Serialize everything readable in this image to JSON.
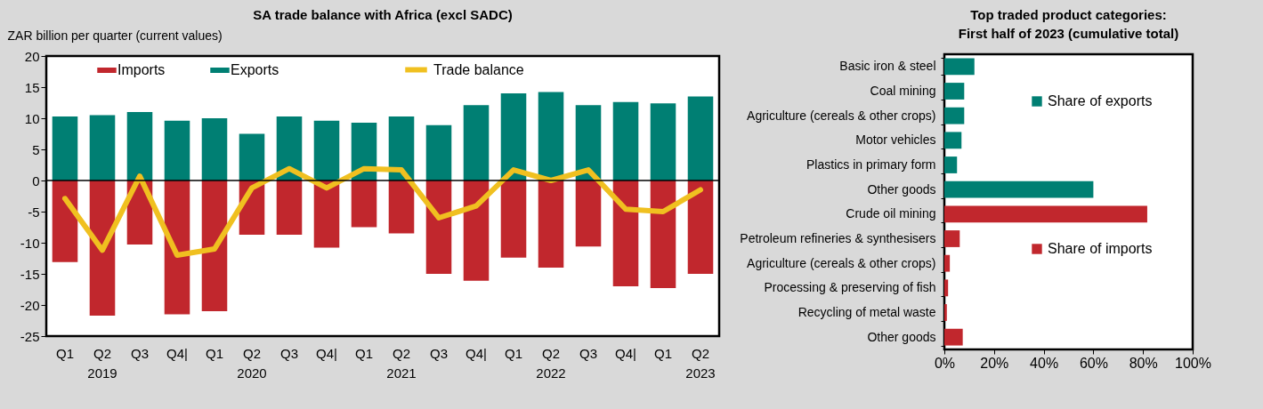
{
  "chart_data": [
    {
      "type": "bar",
      "title": "SA trade balance with Africa (excl SADC)",
      "ylabel": "ZAR billion per quarter  (current values)",
      "categories": [
        "Q1",
        "Q2\n2019",
        "Q3",
        "Q4|",
        "Q1",
        "Q2\n2020",
        "Q3",
        "Q4|",
        "Q1",
        "Q2\n2021",
        "Q3",
        "Q4|",
        "Q1",
        "Q2\n2022",
        "Q3",
        "Q4|",
        "Q1",
        "Q2\n2023"
      ],
      "series": [
        {
          "name": "Imports",
          "color": "#c1272d",
          "values": [
            -13.1,
            -21.7,
            -10.3,
            -21.5,
            -21.0,
            -8.7,
            -8.7,
            -10.8,
            -7.5,
            -8.5,
            -15.0,
            -16.1,
            -12.4,
            -14.0,
            -10.6,
            -17.0,
            -17.3,
            -15.0
          ]
        },
        {
          "name": "Exports",
          "color": "#007f73",
          "values": [
            10.3,
            10.5,
            11.0,
            9.6,
            10.0,
            7.5,
            10.3,
            9.6,
            9.3,
            10.3,
            8.9,
            12.1,
            14.0,
            14.2,
            12.1,
            12.6,
            12.4,
            13.5
          ]
        },
        {
          "name": "Trade balance",
          "type": "line",
          "color": "#f0c020",
          "values": [
            -2.9,
            -11.2,
            0.7,
            -12.0,
            -11.0,
            -1.2,
            1.9,
            -1.2,
            1.9,
            1.7,
            -6.0,
            -4.1,
            1.7,
            0.0,
            1.7,
            -4.6,
            -5.0,
            -1.5
          ]
        }
      ],
      "ylim": [
        -25,
        20
      ],
      "yticks": [
        -25,
        -20,
        -15,
        -10,
        -5,
        0,
        5,
        10,
        15,
        20
      ],
      "stacked": true,
      "grid": false,
      "legend": "top",
      "ref_lines": [
        {
          "axis": "y",
          "value": 0,
          "color": "#000000"
        }
      ]
    },
    {
      "type": "bar",
      "orientation": "horizontal",
      "title": "Top traded product categories:",
      "subtitle": "First half of 2023 (cumulative total)",
      "categories": [
        "Basic iron & steel",
        "Coal mining",
        "Agriculture (cereals & other crops)",
        "Motor vehicles",
        "Plastics in primary form",
        "Other goods",
        "Crude oil mining",
        "Petroleum refineries & synthesisers",
        "Agriculture (cereals & other crops)",
        "Processing & preserving of fish",
        "Recycling of metal waste",
        "Other goods"
      ],
      "series": [
        {
          "name": "Share of exports",
          "color": "#007f73",
          "values": [
            12.1,
            8.0,
            8.0,
            6.9,
            5.1,
            60.0,
            null,
            null,
            null,
            null,
            null,
            null
          ]
        },
        {
          "name": "Share of imports",
          "color": "#c1272d",
          "values": [
            null,
            null,
            null,
            null,
            null,
            null,
            81.7,
            6.2,
            2.2,
            1.5,
            1.0,
            7.4
          ]
        }
      ],
      "xlim": [
        0,
        100
      ],
      "xticks": [
        {
          "value": 0,
          "label": "0%"
        },
        {
          "value": 20,
          "label": "20%"
        },
        {
          "value": 40,
          "label": "40%"
        },
        {
          "value": 60,
          "label": "60%"
        },
        {
          "value": 80,
          "label": "80%"
        },
        {
          "value": 100,
          "label": "100%"
        }
      ],
      "grid": false,
      "legend": "right"
    }
  ]
}
